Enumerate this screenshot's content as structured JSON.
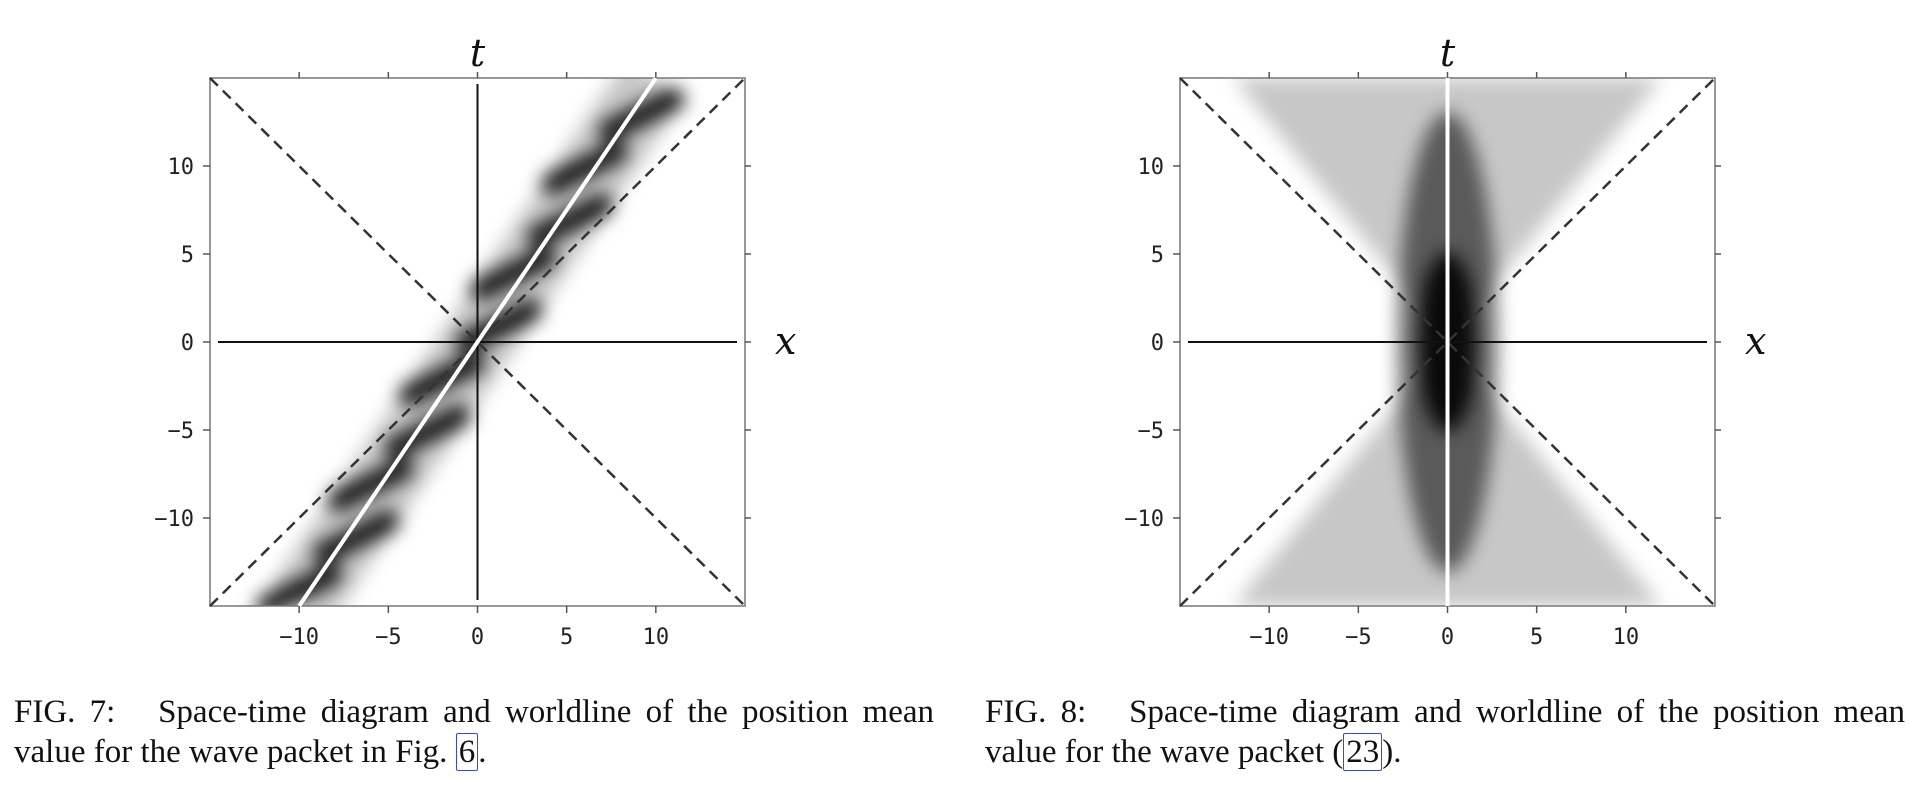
{
  "chart_data": [
    {
      "type": "heatmap",
      "figure_label": "FIG. 7:",
      "xlabel": "x",
      "ylabel": "t",
      "xlim": [
        -15,
        15
      ],
      "ylim": [
        -15,
        15
      ],
      "xticks": [
        -10,
        -5,
        0,
        5,
        10
      ],
      "yticks": [
        -10,
        -5,
        0,
        5,
        10
      ],
      "xtick_labels": [
        "−10",
        "−5",
        "0",
        "5",
        "10"
      ],
      "ytick_labels": [
        "−10",
        "−5",
        "0",
        "5",
        "10"
      ],
      "light_cone": [
        [
          -15,
          -15,
          15,
          15
        ],
        [
          -15,
          15,
          15,
          -15
        ]
      ],
      "worldline": {
        "x": [
          -10,
          10
        ],
        "t": [
          -15,
          15
        ],
        "slope": 1.5
      },
      "density": "stripes along worldline"
    },
    {
      "type": "heatmap",
      "figure_label": "FIG. 8:",
      "xlabel": "x",
      "ylabel": "t",
      "xlim": [
        -15,
        15
      ],
      "ylim": [
        -15,
        15
      ],
      "xticks": [
        -10,
        -5,
        0,
        5,
        10
      ],
      "yticks": [
        -10,
        -5,
        0,
        5,
        10
      ],
      "xtick_labels": [
        "−10",
        "−5",
        "0",
        "5",
        "10"
      ],
      "ytick_labels": [
        "−10",
        "−5",
        "0",
        "5",
        "10"
      ],
      "light_cone": [
        [
          -15,
          -15,
          15,
          15
        ],
        [
          -15,
          15,
          15,
          -15
        ]
      ],
      "worldline": {
        "x": [
          0,
          0
        ],
        "t": [
          -15,
          15
        ],
        "slope": null
      },
      "density": "hourglass centered at origin"
    }
  ],
  "captions": {
    "fig7": {
      "label": "FIG. 7:",
      "text": "Space-time diagram and worldline of the position mean value for the wave packet in Fig.",
      "ref": "6",
      "end": "."
    },
    "fig8": {
      "label": "FIG. 8:",
      "text": "Space-time diagram and worldline of the position mean value for the wave packet (",
      "ref": "23",
      "end": ")."
    }
  }
}
